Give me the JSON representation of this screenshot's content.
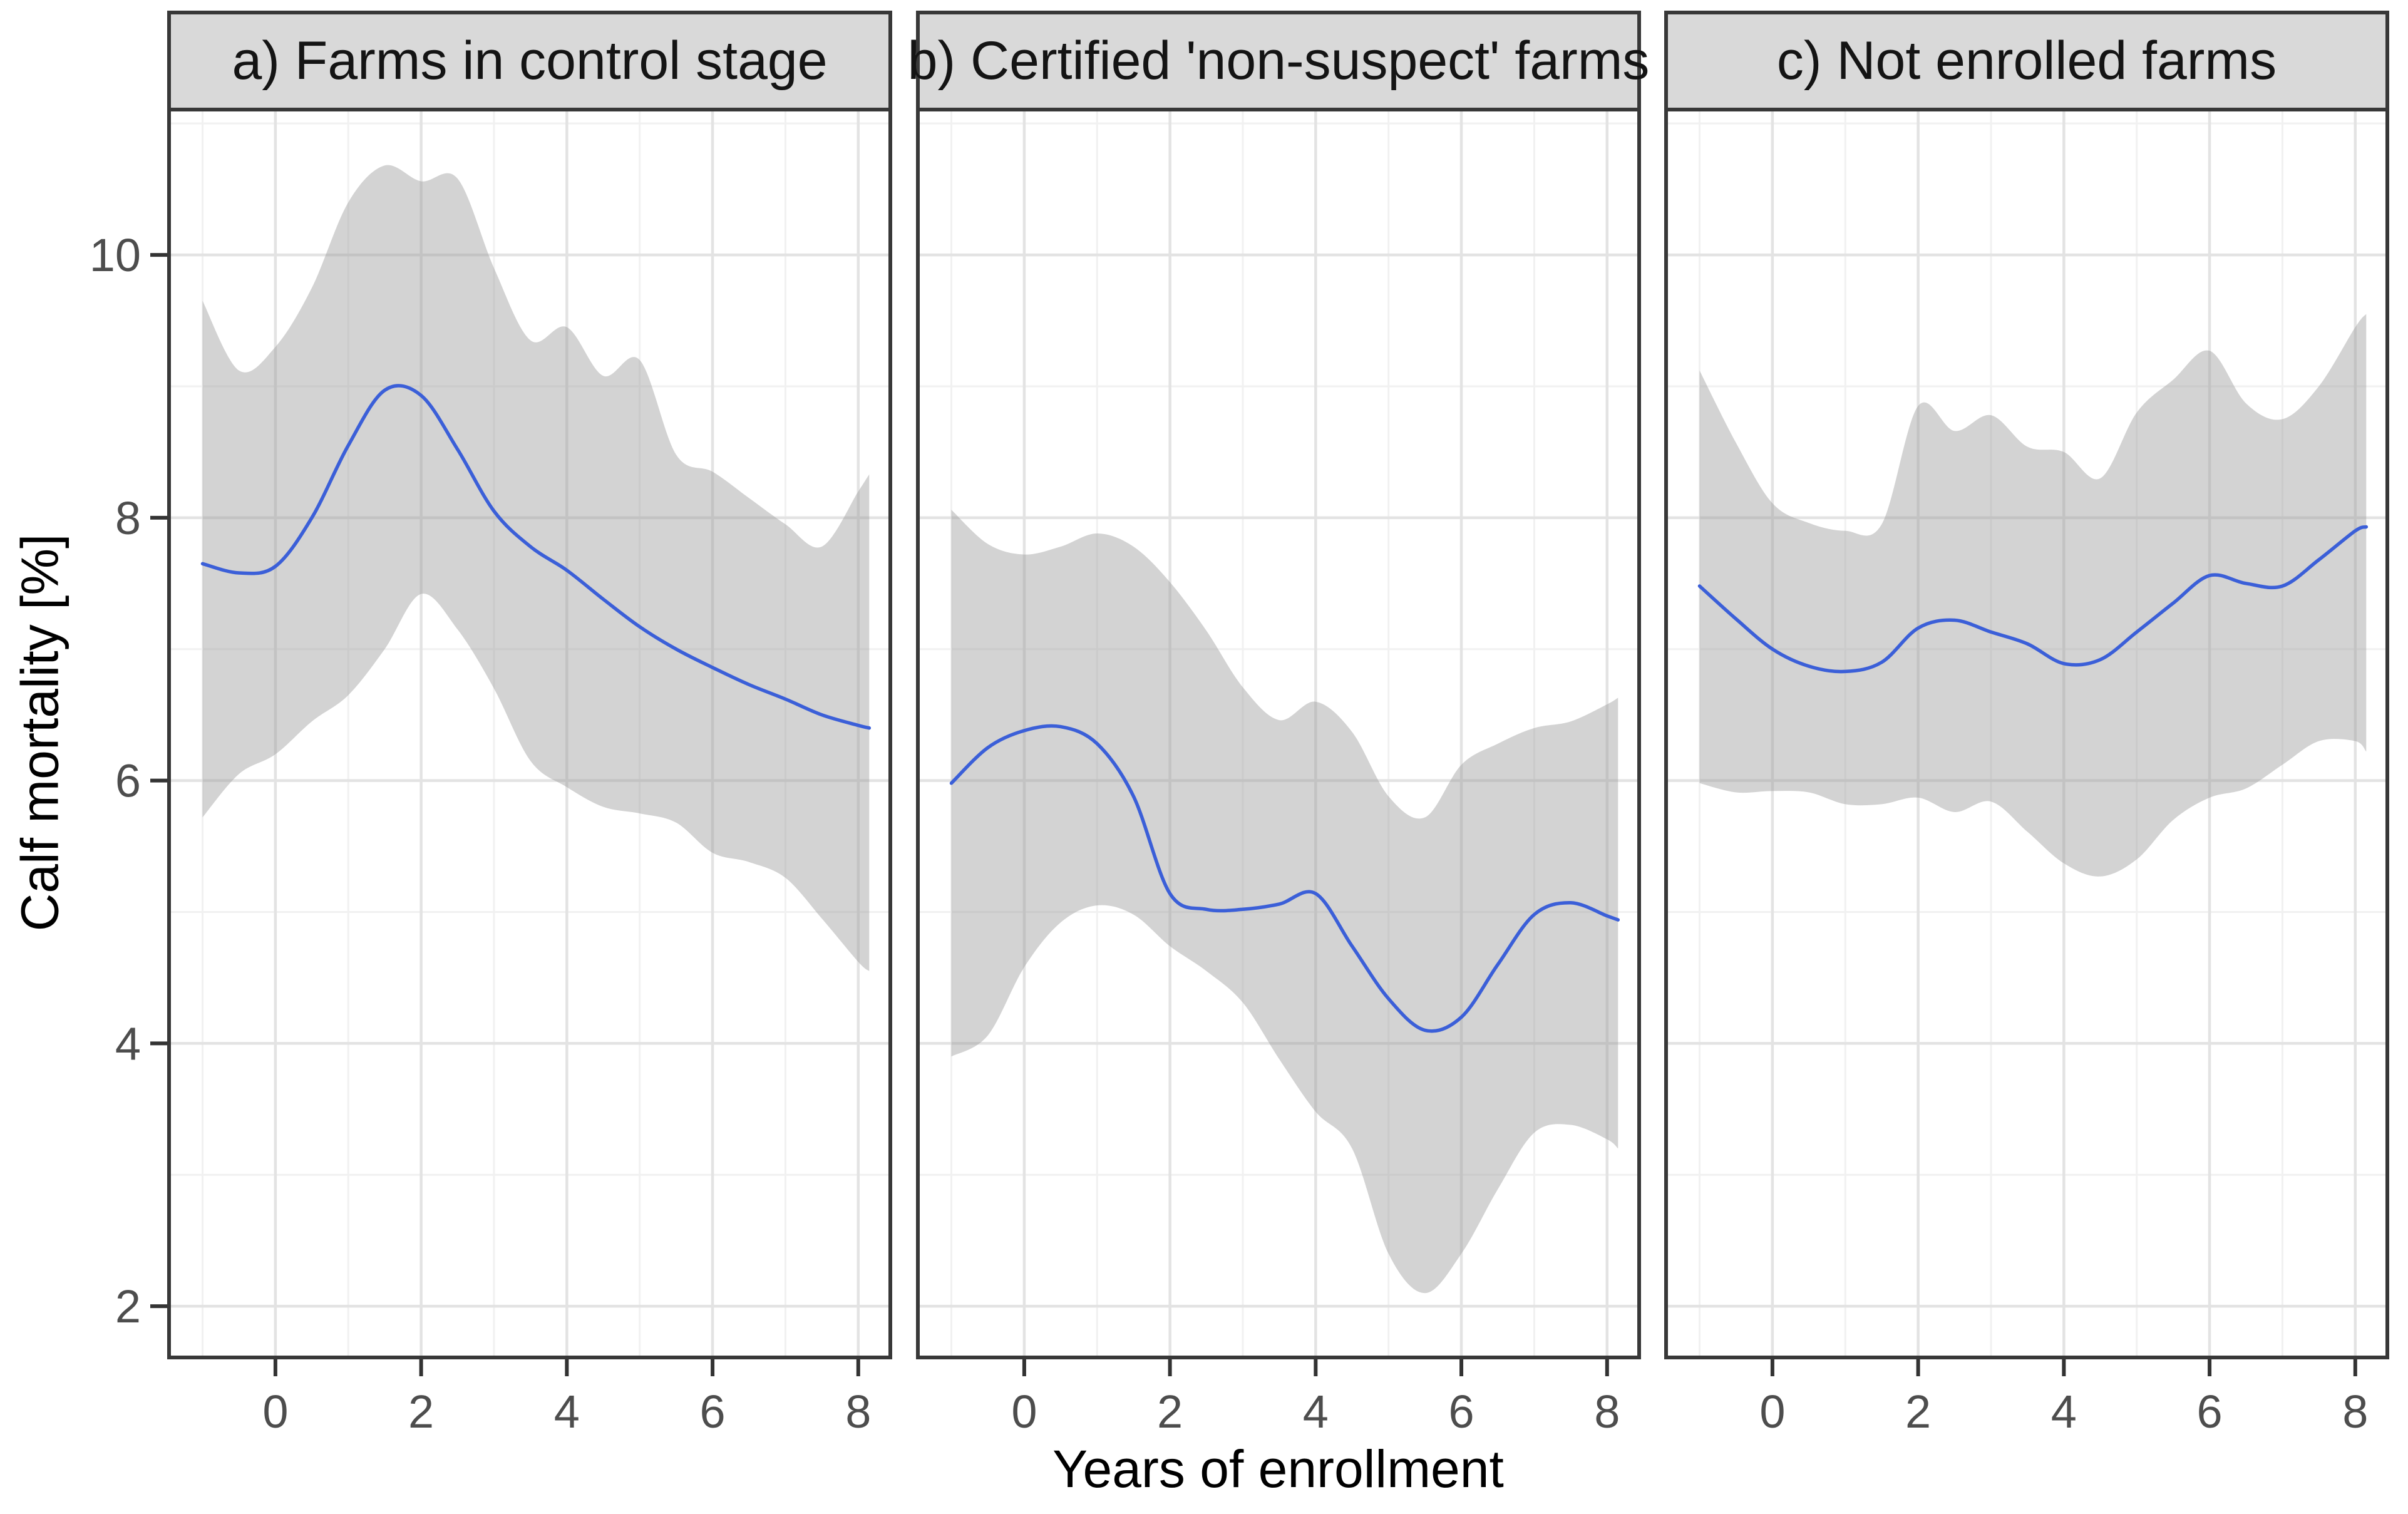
{
  "chart_data": {
    "type": "line",
    "title": "",
    "xlabel": "Years of enrollment",
    "ylabel": "Calf mortality [%]",
    "x_ticks": [
      0,
      2,
      4,
      6,
      8
    ],
    "y_ticks": [
      2,
      4,
      6,
      8,
      10
    ],
    "x_grid_major": [
      0,
      2,
      4,
      6,
      8
    ],
    "x_grid_minor": [
      -1,
      1,
      3,
      5,
      7
    ],
    "y_grid_major": [
      2,
      4,
      6,
      8,
      10
    ],
    "y_grid_minor": [
      3,
      5,
      7,
      9,
      11
    ],
    "x_range": [
      -1.46,
      8.44
    ],
    "y_range": [
      1.61,
      11.12
    ],
    "grid": "on",
    "legend": "none",
    "series_style": "smoothed mean line with 95% confidence ribbon",
    "facets": [
      {
        "id": "a",
        "title": "a) Farms in control stage",
        "x": [
          -1,
          -0.5,
          0,
          0.5,
          1,
          1.5,
          2,
          2.5,
          3,
          3.5,
          4,
          4.5,
          5,
          5.5,
          6,
          6.5,
          7,
          7.5,
          8,
          8.15
        ],
        "mean": [
          7.65,
          7.58,
          7.63,
          8.0,
          8.55,
          8.97,
          8.93,
          8.52,
          8.05,
          7.78,
          7.6,
          7.38,
          7.17,
          7.0,
          6.86,
          6.73,
          6.62,
          6.5,
          6.42,
          6.4
        ],
        "upper": [
          9.65,
          9.12,
          9.3,
          9.75,
          10.4,
          10.68,
          10.56,
          10.58,
          9.9,
          9.35,
          9.45,
          9.08,
          9.2,
          8.48,
          8.35,
          8.15,
          7.95,
          7.78,
          8.2,
          8.33
        ],
        "lower": [
          5.72,
          6.05,
          6.2,
          6.45,
          6.65,
          7.0,
          7.42,
          7.15,
          6.7,
          6.15,
          5.95,
          5.8,
          5.75,
          5.68,
          5.45,
          5.38,
          5.26,
          4.95,
          4.62,
          4.55
        ]
      },
      {
        "id": "b",
        "title": "b) Certified 'non-suspect' farms",
        "x": [
          -1,
          -0.5,
          0,
          0.5,
          1,
          1.5,
          2,
          2.5,
          3,
          3.5,
          4,
          4.5,
          5,
          5.5,
          6,
          6.5,
          7,
          7.5,
          8,
          8.15
        ],
        "mean": [
          5.98,
          6.25,
          6.38,
          6.41,
          6.28,
          5.88,
          5.14,
          5.02,
          5.02,
          5.06,
          5.14,
          4.74,
          4.34,
          4.1,
          4.2,
          4.6,
          4.98,
          5.07,
          4.97,
          4.94
        ],
        "upper": [
          8.06,
          7.8,
          7.72,
          7.78,
          7.88,
          7.78,
          7.51,
          7.14,
          6.71,
          6.46,
          6.6,
          6.37,
          5.88,
          5.72,
          6.12,
          6.28,
          6.4,
          6.45,
          6.58,
          6.63
        ],
        "lower": [
          3.9,
          4.06,
          4.58,
          4.92,
          5.05,
          4.98,
          4.74,
          4.55,
          4.31,
          3.88,
          3.48,
          3.2,
          2.4,
          2.1,
          2.4,
          2.89,
          3.32,
          3.38,
          3.27,
          3.2
        ]
      },
      {
        "id": "c",
        "title": "c) Not enrolled farms",
        "x": [
          -1,
          -0.5,
          0,
          0.5,
          1,
          1.5,
          2,
          2.5,
          3,
          3.5,
          4,
          4.5,
          5,
          5.5,
          6,
          6.5,
          7,
          7.5,
          8,
          8.15
        ],
        "mean": [
          7.48,
          7.23,
          7.0,
          6.87,
          6.83,
          6.9,
          7.16,
          7.22,
          7.13,
          7.04,
          6.89,
          6.92,
          7.13,
          7.35,
          7.56,
          7.5,
          7.48,
          7.68,
          7.9,
          7.93
        ],
        "upper": [
          9.12,
          8.57,
          8.11,
          7.96,
          7.9,
          7.95,
          8.85,
          8.66,
          8.78,
          8.54,
          8.5,
          8.3,
          8.8,
          9.05,
          9.27,
          8.87,
          8.75,
          9.0,
          9.45,
          9.55
        ],
        "lower": [
          5.98,
          5.91,
          5.92,
          5.91,
          5.82,
          5.82,
          5.87,
          5.76,
          5.84,
          5.61,
          5.37,
          5.27,
          5.4,
          5.7,
          5.87,
          5.94,
          6.12,
          6.3,
          6.3,
          6.22
        ]
      }
    ],
    "colors": {
      "line": "#3b5fd8",
      "ribbon": "rgba(150,150,150,0.42)",
      "grid_major": "#e3e3e3",
      "grid_minor": "#f1f1f1",
      "panel_border": "#383838",
      "strip_background": "#d9d9d9",
      "tick_mark": "#333333",
      "tick_text": "#4d4d4d",
      "title_text": "#000000",
      "background": "#ffffff"
    }
  }
}
